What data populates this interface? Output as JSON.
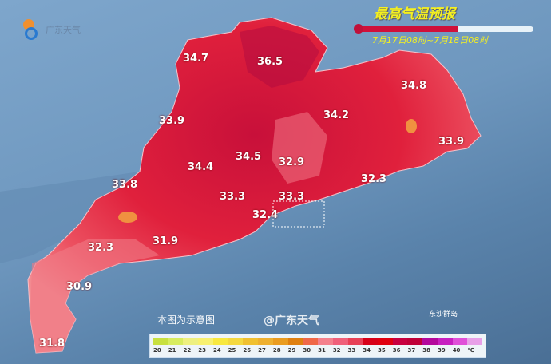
{
  "logo": {
    "text": "广东天气"
  },
  "header": {
    "title": "最高气温预报",
    "period": "7月17日08时~7月18日08时",
    "progress_percent": 57
  },
  "map": {
    "labels": [
      "34.7",
      "36.5",
      "34.8",
      "33.9",
      "34.2",
      "33.9",
      "34.5",
      "32.9",
      "34.4",
      "32.3",
      "33.8",
      "33.3",
      "33.3",
      "32.4",
      "32.3",
      "31.9",
      "30.9",
      "31.8"
    ],
    "note": "本图为示意图",
    "island": "东沙群岛"
  },
  "legend": {
    "ticks": [
      "20",
      "21",
      "22",
      "23",
      "24",
      "25",
      "26",
      "27",
      "28",
      "29",
      "30",
      "31",
      "32",
      "33",
      "34",
      "35",
      "36",
      "37",
      "38",
      "39",
      "40"
    ],
    "unit": "℃",
    "colors": [
      "#c8e040",
      "#d8ec60",
      "#eef080",
      "#f8f070",
      "#f8e840",
      "#f4d840",
      "#f0c030",
      "#eeb030",
      "#ea9c20",
      "#e08010",
      "#f06848",
      "#f4808c",
      "#f0607a",
      "#e84056",
      "#d80018",
      "#e00010",
      "#c80040",
      "#c00038",
      "#b4089c",
      "#c820c0",
      "#e050d8",
      "#e8a0e8"
    ],
    "watermark": "@广东天气"
  },
  "colors": {
    "sea": "#3f6285",
    "land_hot": "#e0203c"
  }
}
